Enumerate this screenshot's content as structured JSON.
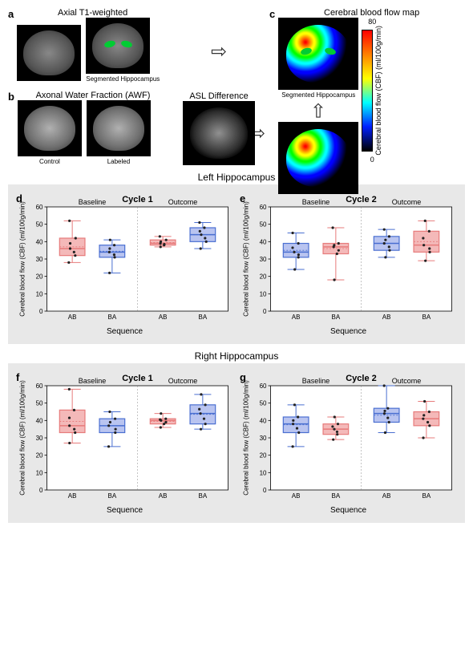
{
  "panels": {
    "a": {
      "label": "a",
      "title": "Axial T1-weighted",
      "captions": [
        "",
        "Segmented Hippocampus"
      ]
    },
    "b": {
      "label": "b",
      "title": "Axonal Water Fraction (AWF)",
      "captions": [
        "Control",
        "Labeled"
      ],
      "mid_caption": "ASL Difference"
    },
    "c": {
      "label": "c",
      "title": "Cerebral blood flow map",
      "caption": "Segmented Hippocampus"
    }
  },
  "colorbar": {
    "min": "0",
    "max": "80",
    "label": "Cerebral blood flow (CBF)\n(ml/100g/min)"
  },
  "sections": {
    "left": "Left Hippocampus",
    "right": "Right Hippocampus"
  },
  "axis": {
    "ylabel": "Cerebral blood flow (CBF)\n(ml/100g/min)",
    "xlabel": "Sequence",
    "y_ticks": [
      0,
      10,
      20,
      30,
      40,
      50,
      60
    ],
    "x_groups": [
      "Baseline",
      "Outcome"
    ],
    "x_cats": [
      "AB",
      "BA"
    ]
  },
  "charts": {
    "d": {
      "label": "d",
      "title": "Cycle 1",
      "boxes": [
        {
          "median": 36,
          "q1": 32,
          "q3": 42,
          "lo": 28,
          "hi": 52,
          "color": "#e77b7b",
          "fill": "#f4b9b9"
        },
        {
          "median": 34,
          "q1": 31,
          "q3": 38,
          "lo": 22,
          "hi": 41,
          "color": "#4a6fd1",
          "fill": "#b9c4f0"
        },
        {
          "median": 39,
          "q1": 38,
          "q3": 41,
          "lo": 37,
          "hi": 43,
          "color": "#e77b7b",
          "fill": "#f4b9b9"
        },
        {
          "median": 44,
          "q1": 40,
          "q3": 48,
          "lo": 36,
          "hi": 51,
          "color": "#4a6fd1",
          "fill": "#b9c4f0"
        }
      ]
    },
    "e": {
      "label": "e",
      "title": "Cycle 2",
      "boxes": [
        {
          "median": 34,
          "q1": 31,
          "q3": 39,
          "lo": 24,
          "hi": 45,
          "color": "#4a6fd1",
          "fill": "#b9c4f0"
        },
        {
          "median": 37,
          "q1": 33,
          "q3": 39,
          "lo": 18,
          "hi": 48,
          "color": "#e77b7b",
          "fill": "#f4b9b9"
        },
        {
          "median": 39,
          "q1": 35,
          "q3": 43,
          "lo": 31,
          "hi": 47,
          "color": "#4a6fd1",
          "fill": "#b9c4f0"
        },
        {
          "median": 38,
          "q1": 34,
          "q3": 46,
          "lo": 29,
          "hi": 52,
          "color": "#e77b7b",
          "fill": "#f4b9b9"
        }
      ]
    },
    "f": {
      "label": "f",
      "title": "Cycle 1",
      "boxes": [
        {
          "median": 37,
          "q1": 33,
          "q3": 46,
          "lo": 27,
          "hi": 58,
          "color": "#e77b7b",
          "fill": "#f4b9b9"
        },
        {
          "median": 37,
          "q1": 33,
          "q3": 41,
          "lo": 25,
          "hi": 45,
          "color": "#4a6fd1",
          "fill": "#b9c4f0"
        },
        {
          "median": 40,
          "q1": 38,
          "q3": 41,
          "lo": 36,
          "hi": 44,
          "color": "#e77b7b",
          "fill": "#f4b9b9"
        },
        {
          "median": 44,
          "q1": 38,
          "q3": 49,
          "lo": 35,
          "hi": 55,
          "color": "#4a6fd1",
          "fill": "#b9c4f0"
        }
      ]
    },
    "g": {
      "label": "g",
      "title": "Cycle 2",
      "boxes": [
        {
          "median": 38,
          "q1": 33,
          "q3": 42,
          "lo": 25,
          "hi": 49,
          "color": "#4a6fd1",
          "fill": "#b9c4f0"
        },
        {
          "median": 35,
          "q1": 32,
          "q3": 38,
          "lo": 29,
          "hi": 42,
          "color": "#e77b7b",
          "fill": "#f4b9b9"
        },
        {
          "median": 44,
          "q1": 39,
          "q3": 47,
          "lo": 33,
          "hi": 60,
          "color": "#4a6fd1",
          "fill": "#b9c4f0"
        },
        {
          "median": 41,
          "q1": 37,
          "q3": 45,
          "lo": 30,
          "hi": 51,
          "color": "#e77b7b",
          "fill": "#f4b9b9"
        }
      ]
    }
  },
  "style": {
    "chart_bg": "#e8e8e8",
    "grid_color": "#999",
    "ab_color": "#e77b7b",
    "ba_color": "#4a6fd1",
    "ylim": [
      0,
      60
    ],
    "box_width": 0.6,
    "font_size": 10
  }
}
